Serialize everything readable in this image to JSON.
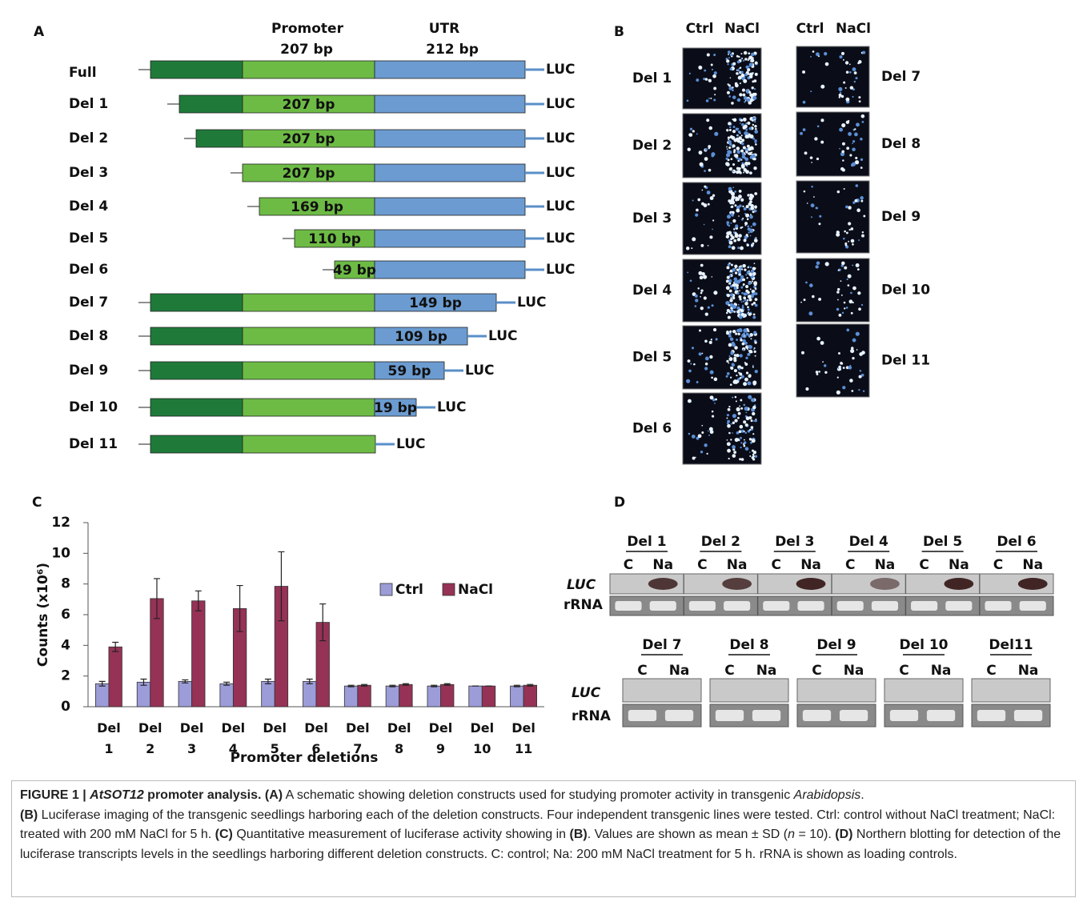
{
  "panel_a": {
    "label": "A",
    "promoter": "Promoter",
    "promoter_length": "207 bp",
    "utr": "UTR",
    "utr_length": "212 bp",
    "reporter": "LUC",
    "rows": [
      {
        "name": "Full"
      },
      {
        "name": "Del 1",
        "segment": "207 bp"
      },
      {
        "name": "Del 2",
        "segment": "207 bp"
      },
      {
        "name": "Del 3",
        "segment": "207 bp"
      },
      {
        "name": "Del 4",
        "segment": "169 bp"
      },
      {
        "name": "Del 5",
        "segment": "110 bp"
      },
      {
        "name": "Del 6",
        "segment": "49 bp"
      },
      {
        "name": "Del 7",
        "segment": "149 bp"
      },
      {
        "name": "Del 8",
        "segment": "109 bp"
      },
      {
        "name": "Del 9",
        "segment": "59 bp"
      },
      {
        "name": "Del 10",
        "segment": "19 bp"
      },
      {
        "name": "Del 11"
      }
    ]
  },
  "panel_b": {
    "label": "B",
    "columns": [
      "Ctrl",
      "NaCl"
    ],
    "left_rows": [
      "Del 1",
      "Del 2",
      "Del 3",
      "Del 4",
      "Del 5",
      "Del 6"
    ],
    "right_rows": [
      "Del 7",
      "Del 8",
      "Del 9",
      "Del 10",
      "Del 11"
    ]
  },
  "chart_data": {
    "type": "bar",
    "panel_label": "C",
    "ylabel": "Counts (x10⁶)",
    "xlabel": "Promoter deletions",
    "categories": [
      "Del 1",
      "Del 2",
      "Del 3",
      "Del 4",
      "Del 5",
      "Del 6",
      "Del 7",
      "Del 8",
      "Del 9",
      "Del 10",
      "Del 11"
    ],
    "series": [
      {
        "name": "Ctrl",
        "color": "#9c9cd8",
        "values": [
          1.5,
          1.6,
          1.65,
          1.5,
          1.65,
          1.65,
          1.35,
          1.35,
          1.35,
          1.35,
          1.35
        ],
        "errors": [
          0.15,
          0.2,
          0.1,
          0.1,
          0.15,
          0.15,
          0.05,
          0.05,
          0.05,
          0,
          0.05
        ]
      },
      {
        "name": "NaCl",
        "color": "#953255",
        "values": [
          3.9,
          7.05,
          6.9,
          6.4,
          7.85,
          5.5,
          1.4,
          1.45,
          1.45,
          1.35,
          1.4
        ],
        "errors": [
          0.3,
          1.3,
          0.65,
          1.5,
          2.25,
          1.2,
          0.05,
          0.05,
          0.05,
          0,
          0.05
        ]
      }
    ],
    "ylim": [
      0,
      12
    ],
    "yticks": [
      0,
      2,
      4,
      6,
      8,
      10,
      12
    ],
    "legend": "center right"
  },
  "panel_d": {
    "label": "D",
    "columns": [
      "C",
      "Na"
    ],
    "probes": [
      "LUC",
      "rRNA"
    ],
    "top_groups": [
      "Del 1",
      "Del 2",
      "Del 3",
      "Del 4",
      "Del 5",
      "Del 6"
    ],
    "bottom_groups": [
      "Del 7",
      "Del 8",
      "Del 9",
      "Del 10",
      "Del11"
    ]
  },
  "caption": [
    "FIGURE 1 | ",
    "AtSOT12",
    " promoter analysis.",
    " (A)",
    " A schematic showing deletion constructs used for studying promoter activity in transgenic ",
    "Arabidopsis",
    ".",
    "(B)",
    " Luciferase imaging of the transgenic seedlings harboring each of the deletion constructs. Four independent transgenic lines were tested. Ctrl: control without NaCl treatment; NaCl: treated with 200 mM NaCl for 5 h. ",
    "(C)",
    " Quantitative measurement of luciferase activity showing in ",
    "(B)",
    ". Values are shown as mean ± SD (",
    "n",
    " = 10). ",
    "(D)",
    " Northern blotting for detection of the luciferase transcripts levels in the seedlings harboring different deletion constructs. C: control; Na: 200 mM NaCl treatment for 5 h. rRNA is shown as loading controls."
  ]
}
